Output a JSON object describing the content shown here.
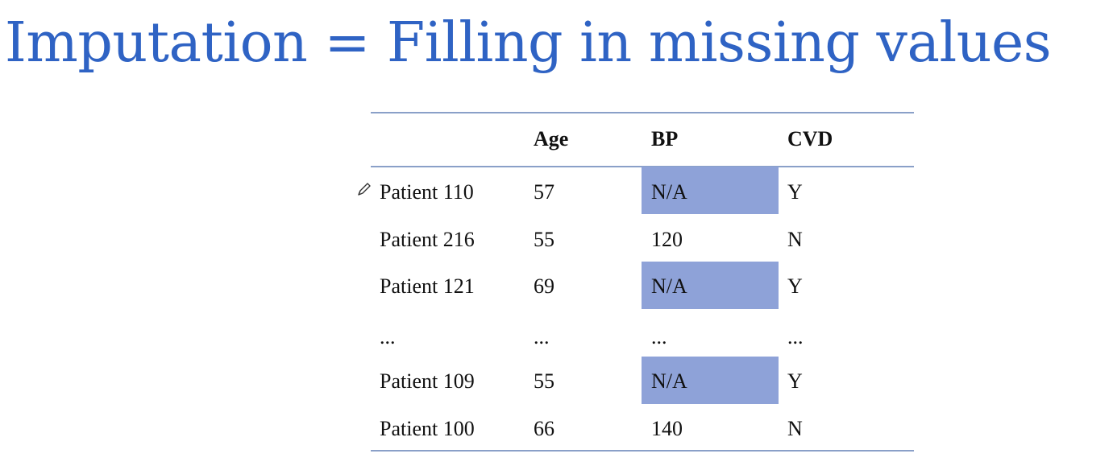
{
  "title": "Imputation = Filling in missing values",
  "table": {
    "headers": [
      "",
      "Age",
      "BP",
      "CVD"
    ],
    "rows": [
      {
        "name": "Patient 110",
        "age": "57",
        "bp": "N/A",
        "cvd": "Y",
        "bp_missing": true
      },
      {
        "name": "Patient 216",
        "age": "55",
        "bp": "120",
        "cvd": "N",
        "bp_missing": false
      },
      {
        "name": "Patient 121",
        "age": "69",
        "bp": "N/A",
        "cvd": "Y",
        "bp_missing": true
      },
      {
        "name": "...",
        "age": "...",
        "bp": "...",
        "cvd": "...",
        "bp_missing": false
      },
      {
        "name": "Patient 109",
        "age": "55",
        "bp": "N/A",
        "cvd": "Y",
        "bp_missing": true
      },
      {
        "name": "Patient 100",
        "age": "66",
        "bp": "140",
        "cvd": "N",
        "bp_missing": false
      }
    ]
  },
  "colors": {
    "title": "#2f63c4",
    "rule": "#8aa0c8",
    "missing_highlight": "#8ea2d8",
    "text": "#111111"
  },
  "icons": {
    "cursor": "pencil-icon"
  }
}
